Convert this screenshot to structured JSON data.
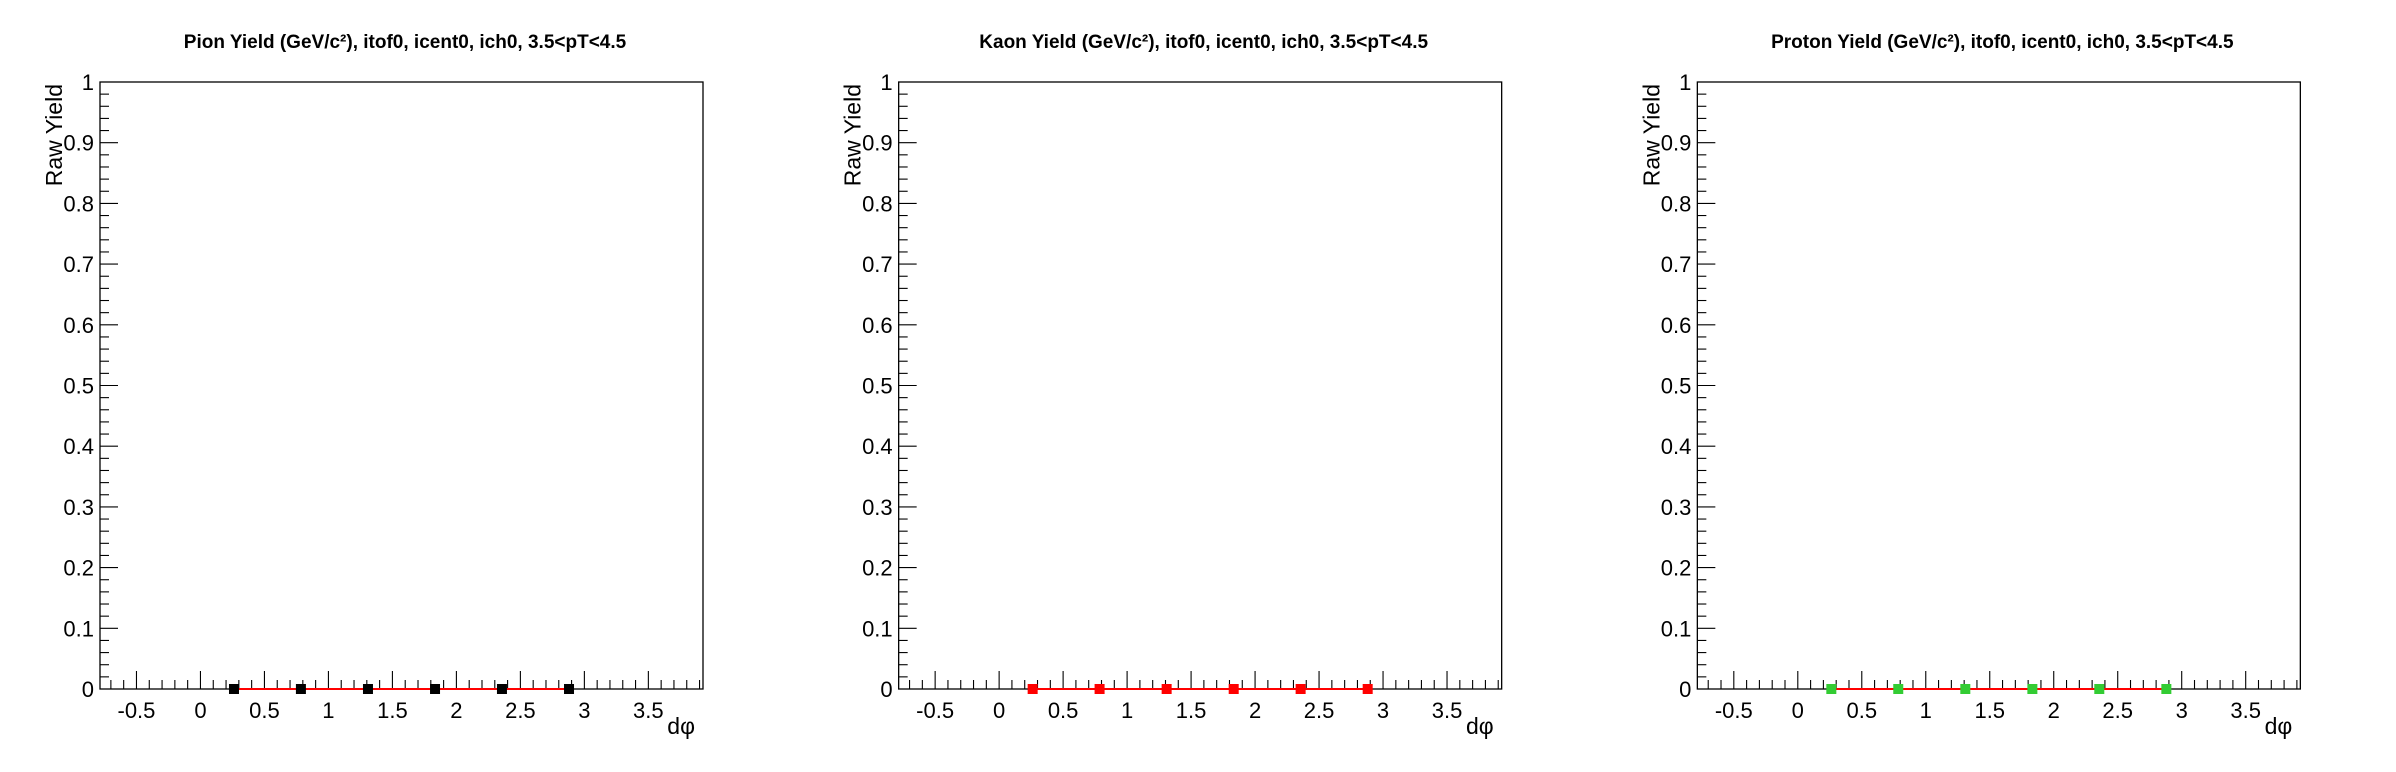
{
  "chart_data": [
    {
      "type": "scatter",
      "title": "Pion Yield (GeV/c²), itof0, icent0, ich0, 3.5<pT<4.5",
      "xlabel": "dφ",
      "ylabel": "Raw Yield",
      "xlim": [
        -0.785,
        3.927
      ],
      "ylim": [
        0,
        1
      ],
      "xticks": [
        "-0.5",
        "0",
        "0.5",
        "1",
        "1.5",
        "2",
        "2.5",
        "3",
        "3.5"
      ],
      "yticks": [
        "0",
        "0.1",
        "0.2",
        "0.3",
        "0.4",
        "0.5",
        "0.6",
        "0.7",
        "0.8",
        "0.9",
        "1"
      ],
      "x": [
        0.262,
        0.785,
        1.309,
        1.833,
        2.356,
        2.88
      ],
      "values": [
        0,
        0,
        0,
        0,
        0,
        0
      ],
      "marker_color": "#000000",
      "line_color": "#ff0000",
      "grid": false
    },
    {
      "type": "scatter",
      "title": "Kaon Yield (GeV/c²), itof0, icent0, ich0, 3.5<pT<4.5",
      "xlabel": "dφ",
      "ylabel": "Raw Yield",
      "xlim": [
        -0.785,
        3.927
      ],
      "ylim": [
        0,
        1
      ],
      "xticks": [
        "-0.5",
        "0",
        "0.5",
        "1",
        "1.5",
        "2",
        "2.5",
        "3",
        "3.5"
      ],
      "yticks": [
        "0",
        "0.1",
        "0.2",
        "0.3",
        "0.4",
        "0.5",
        "0.6",
        "0.7",
        "0.8",
        "0.9",
        "1"
      ],
      "x": [
        0.262,
        0.785,
        1.309,
        1.833,
        2.356,
        2.88
      ],
      "values": [
        0,
        0,
        0,
        0,
        0,
        0
      ],
      "marker_color": "#ff0000",
      "line_color": "#ff0000",
      "grid": false
    },
    {
      "type": "scatter",
      "title": "Proton Yield (GeV/c²), itof0, icent0, ich0, 3.5<pT<4.5",
      "xlabel": "dφ",
      "ylabel": "Raw Yield",
      "xlim": [
        -0.785,
        3.927
      ],
      "ylim": [
        0,
        1
      ],
      "xticks": [
        "-0.5",
        "0",
        "0.5",
        "1",
        "1.5",
        "2",
        "2.5",
        "3",
        "3.5"
      ],
      "yticks": [
        "0",
        "0.1",
        "0.2",
        "0.3",
        "0.4",
        "0.5",
        "0.6",
        "0.7",
        "0.8",
        "0.9",
        "1"
      ],
      "x": [
        0.262,
        0.785,
        1.309,
        1.833,
        2.356,
        2.88
      ],
      "values": [
        0,
        0,
        0,
        0,
        0,
        0
      ],
      "marker_color": "#33cc33",
      "line_color": "#ff0000",
      "grid": false
    }
  ]
}
